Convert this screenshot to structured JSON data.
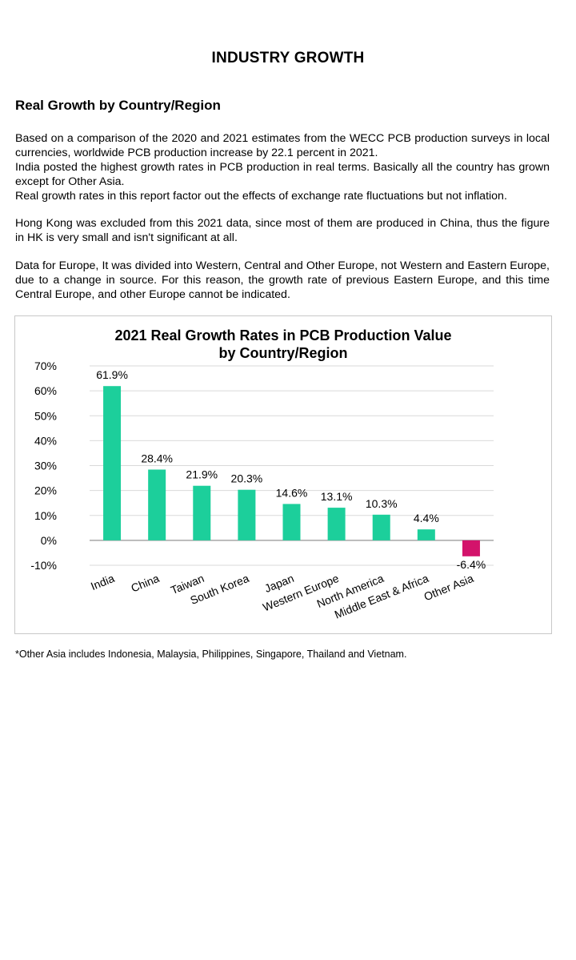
{
  "page": {
    "title": "INDUSTRY GROWTH",
    "section_heading": "Real Growth by Country/Region",
    "paragraphs": [
      [
        "Based on a comparison of the 2020 and 2021 estimates from the WECC PCB production surveys in local currencies, worldwide PCB production increase by 22.1 percent in 2021.",
        "India posted the highest growth rates in PCB production in real terms. Basically all the country has grown except for Other Asia.",
        "Real growth rates in this report factor out the effects of exchange rate fluctuations but not inflation."
      ],
      [
        "Hong Kong was excluded from this 2021 data, since most of them are produced in China, thus the figure in HK is very small and isn't significant at all."
      ],
      [
        "Data for Europe, It was divided into Western, Central and Other Europe, not Western and Eastern Europe, due to a change in source. For this reason, the growth rate of previous Eastern Europe, and this time Central Europe, and other Europe cannot be indicated."
      ]
    ],
    "footnote": "*Other Asia includes Indonesia, Malaysia, Philippines, Singapore, Thailand and Vietnam."
  },
  "colors": {
    "positive_bar": "#1ccf9b",
    "negative_bar": "#d3136b",
    "grid": "#d9d9d9",
    "axis": "#a6a6a6"
  },
  "chart_data": {
    "type": "bar",
    "title_lines": [
      "2021 Real Growth Rates in PCB Production Value",
      "by Country/Region"
    ],
    "categories": [
      "India",
      "China",
      "Taiwan",
      "South Korea",
      "Japan",
      "Western Europe",
      "North America",
      "Middle East & Africa",
      "Other Asia"
    ],
    "values": [
      61.9,
      28.4,
      21.9,
      20.3,
      14.6,
      13.1,
      10.3,
      4.4,
      -6.4
    ],
    "data_labels": [
      "61.9%",
      "28.4%",
      "21.9%",
      "20.3%",
      "14.6%",
      "13.1%",
      "10.3%",
      "4.4%",
      "-6.4%"
    ],
    "ylim": [
      -10,
      70
    ],
    "yticks": [
      70,
      60,
      50,
      40,
      30,
      20,
      10,
      0,
      -10
    ],
    "ytick_labels": [
      "70%",
      "60%",
      "50%",
      "40%",
      "30%",
      "20%",
      "10%",
      "0%",
      "-10%"
    ],
    "xlabel": "",
    "ylabel": "",
    "grid": true,
    "legend": false
  }
}
